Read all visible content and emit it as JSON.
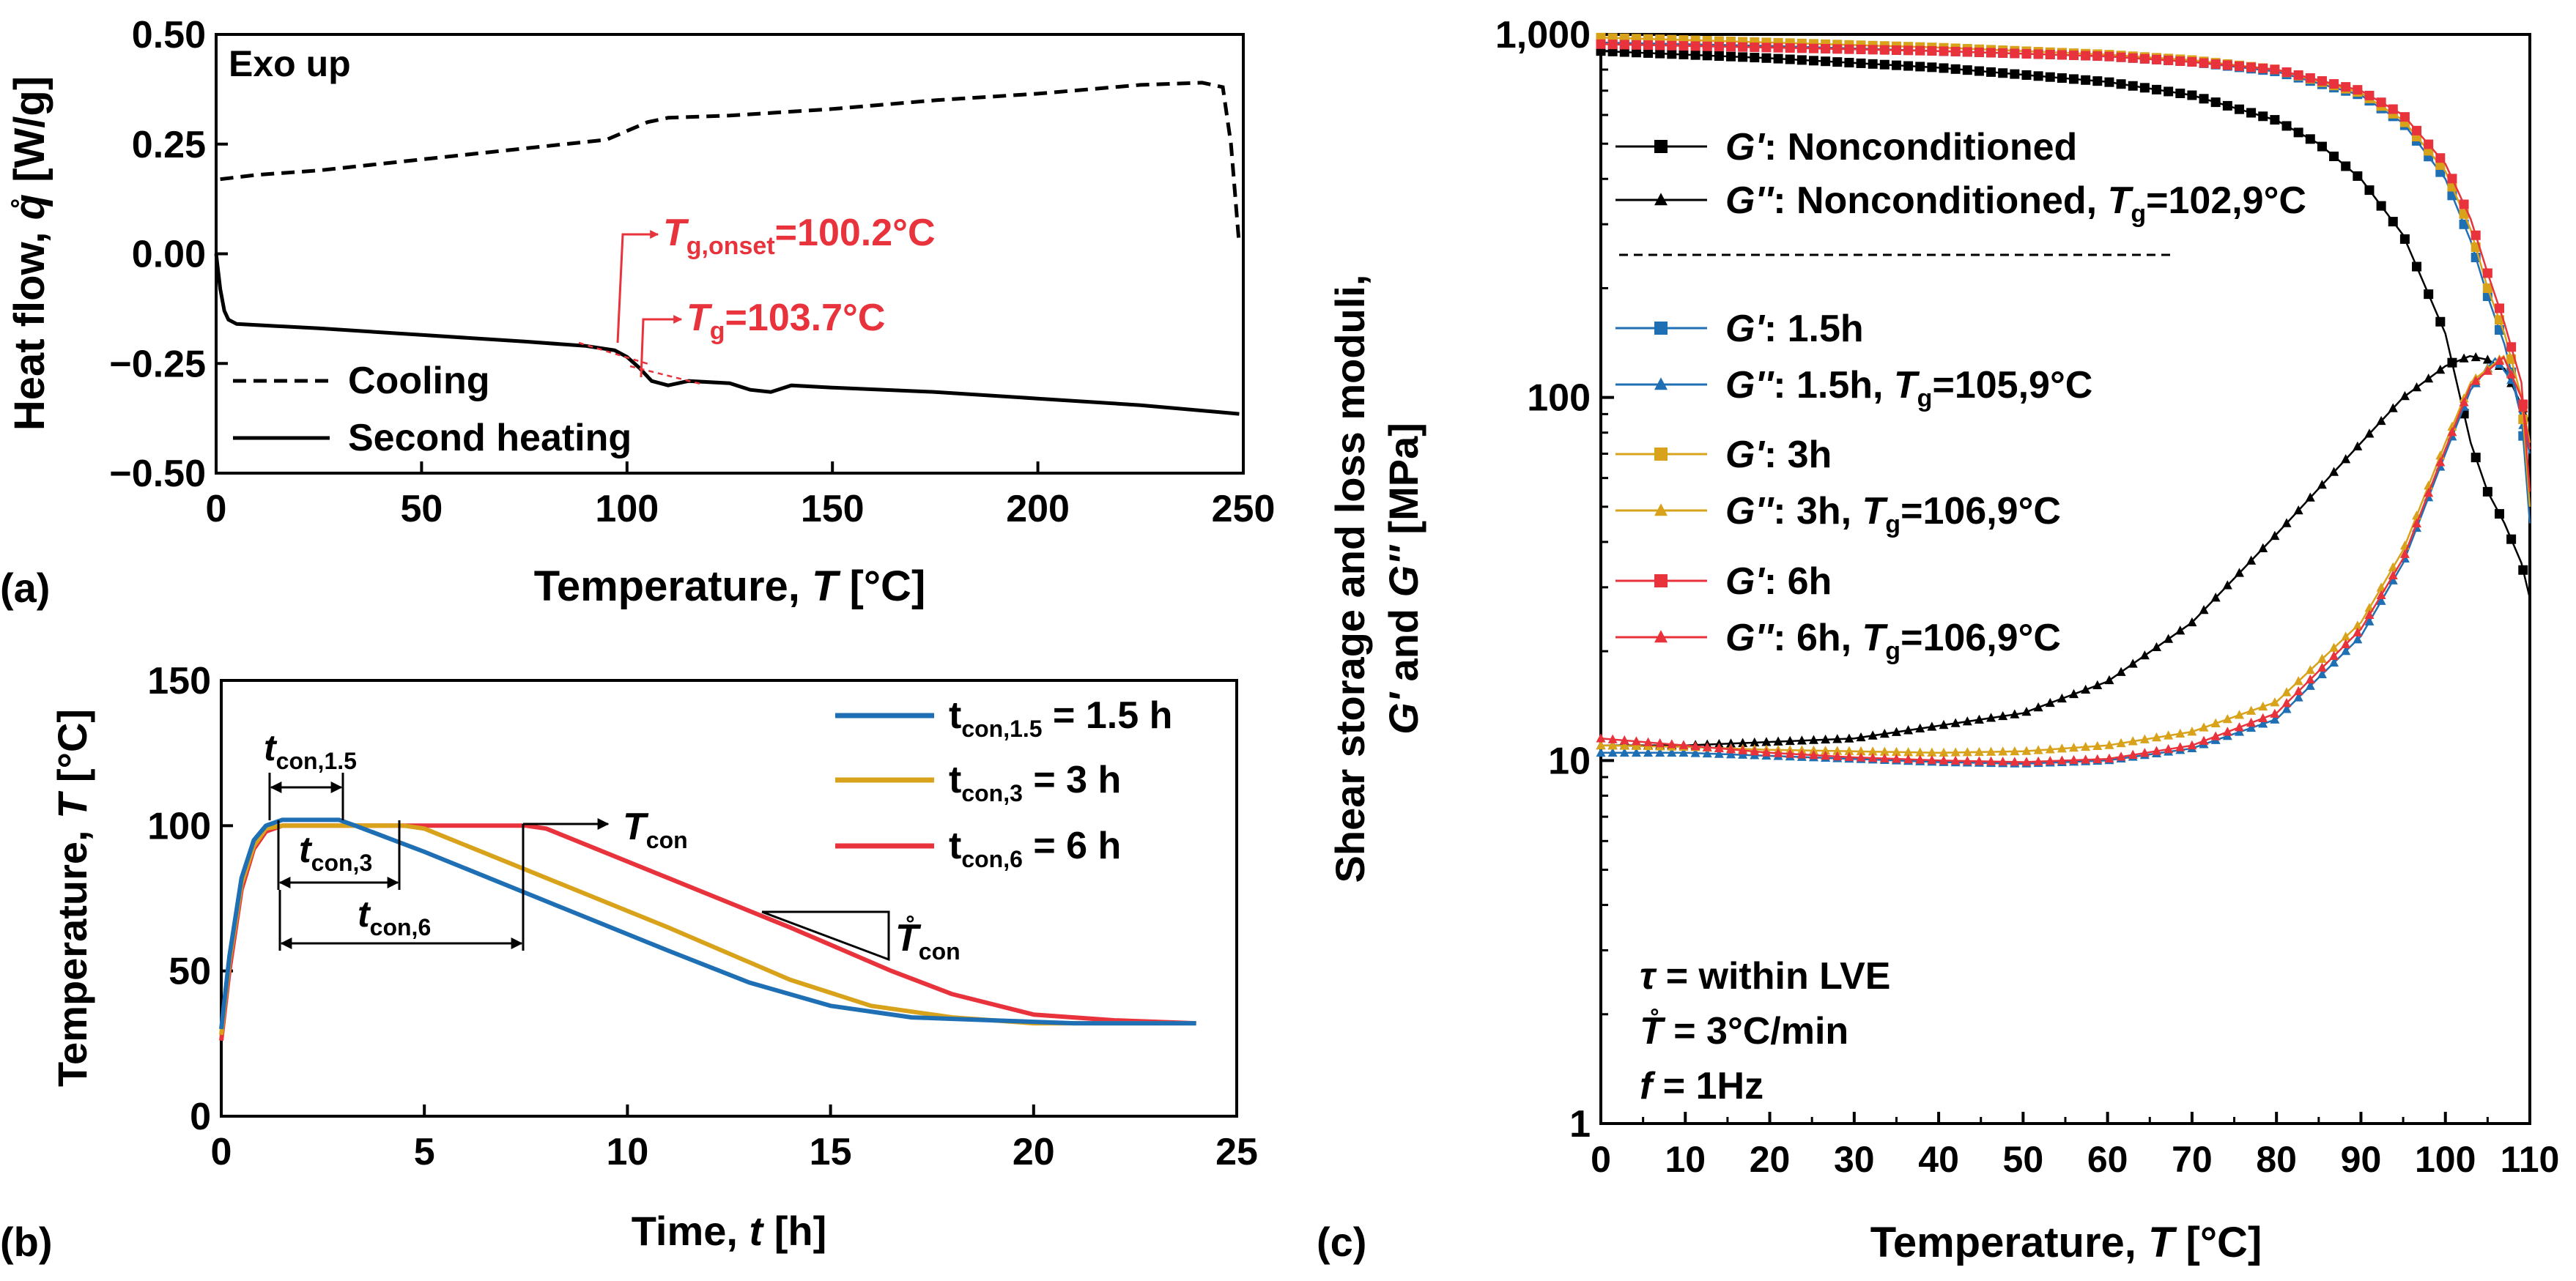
{
  "chart_data": [
    {
      "panel_label": "(a)",
      "type": "line",
      "xlabel": "Temperature, ",
      "xlabel_var": "T",
      "xlabel_unit": " [°C]",
      "ylabel": "Heat flow, ",
      "ylabel_var": "q̊",
      "ylabel_unit": " [W/g]",
      "xlim": [
        0,
        250
      ],
      "ylim": [
        -0.5,
        0.5
      ],
      "xticks": [
        0,
        50,
        100,
        150,
        200,
        250
      ],
      "yticks": [
        0.5,
        0.25,
        0.0,
        -0.25,
        -0.5
      ],
      "ytick_labels": [
        "0.50",
        "0.25",
        "0.00",
        "−0.25",
        "−0.50"
      ],
      "corner_note": "Exo up",
      "series": [
        {
          "name": "Cooling",
          "style": "dashed",
          "color": "#000000",
          "x": [
            1,
            10,
            25,
            50,
            75,
            95,
            105,
            110,
            125,
            150,
            175,
            200,
            225,
            240,
            245,
            247,
            249
          ],
          "y": [
            0.17,
            0.18,
            0.19,
            0.215,
            0.24,
            0.26,
            0.3,
            0.31,
            0.315,
            0.33,
            0.35,
            0.365,
            0.385,
            0.39,
            0.38,
            0.25,
            0.02
          ]
        },
        {
          "name": "Second heating",
          "style": "solid",
          "color": "#000000",
          "x": [
            0,
            1,
            2,
            3,
            5,
            25,
            50,
            75,
            90,
            97,
            100,
            103,
            106,
            110,
            115,
            125,
            130,
            135,
            140,
            150,
            175,
            200,
            225,
            249
          ],
          "y": [
            0.0,
            -0.08,
            -0.13,
            -0.15,
            -0.16,
            -0.17,
            -0.185,
            -0.2,
            -0.21,
            -0.22,
            -0.235,
            -0.26,
            -0.29,
            -0.3,
            -0.29,
            -0.295,
            -0.31,
            -0.315,
            -0.3,
            -0.305,
            -0.315,
            -0.33,
            -0.345,
            -0.365
          ]
        }
      ],
      "annotations": [
        {
          "label": "T",
          "sub": "g,onset",
          "value": "=100.2°C",
          "x": 100.2,
          "color": "#e8323c"
        },
        {
          "label": "T",
          "sub": "g",
          "value": "=103.7°C",
          "x": 103.7,
          "color": "#e8323c"
        }
      ]
    },
    {
      "panel_label": "(b)",
      "type": "line",
      "xlabel": "Time, ",
      "xlabel_var": "t",
      "xlabel_unit": " [h]",
      "ylabel": "Temperature, ",
      "ylabel_var": "T",
      "ylabel_unit": " [°C]",
      "xlim": [
        0,
        25
      ],
      "ylim": [
        0,
        150
      ],
      "xticks": [
        0,
        5,
        10,
        15,
        20,
        25
      ],
      "yticks": [
        0,
        50,
        100,
        150
      ],
      "series": [
        {
          "name_main": "t",
          "name_sub": "con,1.5",
          "name_rest": " = 1.5 h",
          "color": "#1f6fb4",
          "x": [
            0,
            0.2,
            0.5,
            0.8,
            1.1,
            1.5,
            2.9,
            3.3,
            5,
            8,
            11,
            13,
            15,
            17,
            19,
            21,
            24
          ],
          "y": [
            30,
            55,
            82,
            95,
            100,
            102,
            102,
            100,
            91,
            74,
            57,
            46,
            38,
            34,
            33,
            32,
            32
          ]
        },
        {
          "name_main": "t",
          "name_sub": "con,3",
          "name_rest": " = 3 h",
          "color": "#d9a21b",
          "x": [
            0,
            0.2,
            0.5,
            0.8,
            1.1,
            1.5,
            4.5,
            5,
            8,
            11,
            14,
            16,
            18,
            20,
            24
          ],
          "y": [
            28,
            53,
            80,
            93,
            99,
            100,
            100,
            99,
            82,
            65,
            47,
            38,
            34,
            32,
            32
          ]
        },
        {
          "name_main": "t",
          "name_sub": "con,6",
          "name_rest": " = 6 h",
          "color": "#e8323c",
          "x": [
            0,
            0.2,
            0.5,
            0.8,
            1.1,
            1.5,
            7.5,
            8,
            11,
            14,
            16.5,
            18,
            20,
            22,
            24
          ],
          "y": [
            26,
            50,
            78,
            92,
            98,
            100,
            100,
            99,
            82,
            65,
            50,
            42,
            35,
            33,
            32
          ]
        }
      ],
      "annotations": {
        "t_con_1_5": {
          "main": "t",
          "sub": "con,1.5"
        },
        "t_con_3": {
          "main": "t",
          "sub": "con,3"
        },
        "t_con_6": {
          "main": "t",
          "sub": "con,6"
        },
        "T_con": {
          "main": "T",
          "sub": "con"
        },
        "T_rate": {
          "main": "T̊",
          "sub": "con"
        }
      }
    },
    {
      "panel_label": "(c)",
      "type": "scatter",
      "xlabel": "Temperature, ",
      "xlabel_var": "T",
      "xlabel_unit": " [°C]",
      "ylabel_line1": "Shear storage and loss moduli,",
      "ylabel_line2_parts": [
        "G'",
        " and ",
        "G''",
        " [MPa]"
      ],
      "yscale": "log",
      "xlim": [
        0,
        110
      ],
      "ylim": [
        1,
        1000
      ],
      "xticks": [
        0,
        10,
        20,
        30,
        40,
        50,
        60,
        70,
        80,
        90,
        100,
        110
      ],
      "yticks": [
        1,
        10,
        100,
        1000
      ],
      "ytick_labels": [
        "1",
        "10",
        "100",
        "1,000"
      ],
      "series": [
        {
          "var": "G'",
          "label": ": Nonconditioned",
          "tg": "",
          "marker": "square",
          "color": "#000000",
          "x": [
            0,
            20,
            40,
            60,
            70,
            80,
            85,
            90,
            95,
            100,
            103,
            105,
            107,
            109,
            110
          ],
          "y": [
            900,
            860,
            810,
            740,
            680,
            580,
            500,
            400,
            280,
            150,
            75,
            55,
            45,
            35,
            28
          ]
        },
        {
          "var": "G''",
          "label": ": Nonconditioned, ",
          "tg": "=102,9°C",
          "marker": "triangle",
          "color": "#000000",
          "x": [
            0,
            10,
            30,
            50,
            60,
            70,
            80,
            90,
            95,
            100,
            102.9,
            105,
            107,
            110
          ],
          "y": [
            11,
            11,
            11.5,
            13.5,
            16.5,
            24,
            42,
            75,
            100,
            122,
            130,
            127,
            120,
            85
          ]
        },
        {
          "var": "G'",
          "label": ": 1.5h",
          "tg": "",
          "marker": "square",
          "color": "#1f6fb4",
          "x": [
            0,
            20,
            40,
            60,
            70,
            80,
            90,
            95,
            100,
            103,
            105,
            107,
            109,
            110
          ],
          "y": [
            950,
            930,
            900,
            870,
            840,
            790,
            680,
            570,
            400,
            270,
            190,
            140,
            90,
            45
          ]
        },
        {
          "var": "G''",
          "label": ": 1.5h, ",
          "tg": "=105,9°C",
          "marker": "triangle",
          "color": "#1f6fb4",
          "x": [
            0,
            10,
            20,
            30,
            40,
            50,
            60,
            70,
            80,
            90,
            95,
            100,
            103,
            105.9,
            108,
            110
          ],
          "y": [
            10.5,
            10.5,
            10.3,
            10.1,
            9.9,
            9.8,
            10,
            10.8,
            13,
            22,
            35,
            70,
            105,
            128,
            110,
            70
          ]
        },
        {
          "var": "G'",
          "label": ": 3h",
          "tg": "",
          "marker": "square",
          "color": "#d9a21b",
          "x": [
            0,
            20,
            40,
            60,
            70,
            80,
            90,
            95,
            100,
            103,
            105,
            107,
            109,
            110
          ],
          "y": [
            980,
            950,
            920,
            880,
            850,
            800,
            690,
            580,
            420,
            290,
            200,
            150,
            100,
            50
          ]
        },
        {
          "var": "G''",
          "label": ": 3h, ",
          "tg": "=106,9°C",
          "marker": "triangle",
          "color": "#d9a21b",
          "x": [
            0,
            10,
            20,
            30,
            40,
            50,
            60,
            70,
            80,
            90,
            95,
            100,
            103,
            106.9,
            109,
            110
          ],
          "y": [
            11,
            10.9,
            10.7,
            10.6,
            10.5,
            10.6,
            11,
            12,
            14.5,
            24,
            38,
            75,
            110,
            130,
            100,
            75
          ]
        },
        {
          "var": "G'",
          "label": ": 6h",
          "tg": "",
          "marker": "square",
          "color": "#e8323c",
          "x": [
            0,
            20,
            40,
            60,
            70,
            80,
            90,
            95,
            100,
            103,
            105,
            107,
            109,
            110
          ],
          "y": [
            940,
            920,
            900,
            870,
            840,
            800,
            700,
            600,
            440,
            310,
            220,
            160,
            110,
            55
          ]
        },
        {
          "var": "G''",
          "label": ": 6h, ",
          "tg": "=106,9°C",
          "marker": "triangle",
          "color": "#e8323c",
          "x": [
            0,
            10,
            20,
            30,
            40,
            50,
            60,
            70,
            80,
            90,
            95,
            100,
            103,
            106.9,
            109,
            110
          ],
          "y": [
            11.5,
            11,
            10.5,
            10.2,
            10,
            9.9,
            10.1,
            11,
            13.5,
            23,
            36,
            72,
            108,
            129,
            100,
            72
          ]
        }
      ],
      "tg_symbol": "T",
      "tg_sub": "g",
      "conditions": [
        {
          "var": "τ",
          "text": " = within LVE"
        },
        {
          "var": "T̊",
          "text": " = 3°C/min"
        },
        {
          "var": "f",
          "text": " = 1Hz"
        }
      ]
    }
  ]
}
